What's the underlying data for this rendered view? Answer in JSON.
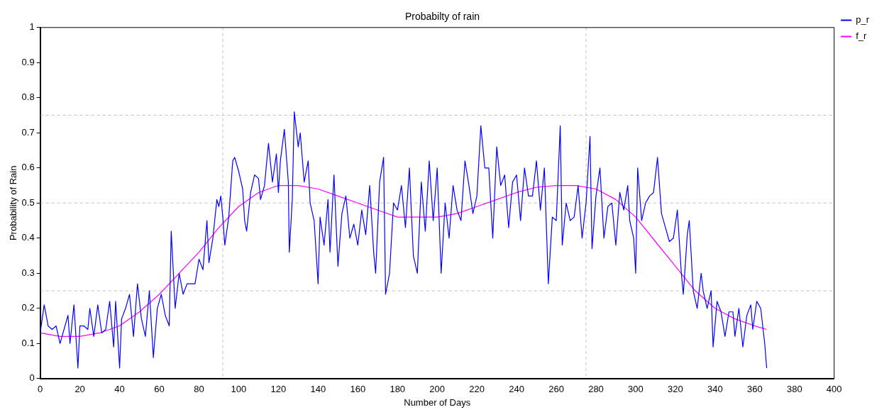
{
  "chart_data": {
    "type": "line",
    "title": "Probabilty of rain",
    "xlabel": "Number of Days",
    "ylabel": "Probability of Rain",
    "xlim": [
      0,
      400
    ],
    "xticks": [
      0,
      20,
      40,
      60,
      80,
      100,
      120,
      140,
      160,
      180,
      200,
      220,
      240,
      260,
      280,
      300,
      320,
      340,
      360,
      380,
      400
    ],
    "ylim": [
      0,
      1
    ],
    "yticks": [
      0,
      0.1,
      0.2,
      0.3,
      0.4,
      0.5,
      0.6,
      0.7,
      0.8,
      0.9,
      1
    ],
    "legend": "top right",
    "marker": "none",
    "line_style": "solid",
    "ref_lines": [
      {
        "axis": "x",
        "value": 92,
        "color": "#c0c0c0",
        "line_style": "dashed"
      },
      {
        "axis": "x",
        "value": 275,
        "color": "#c0c0c0",
        "line_style": "dashed"
      },
      {
        "axis": "y",
        "value": 0.25,
        "color": "#c0c0c0",
        "line_style": "dashed"
      },
      {
        "axis": "y",
        "value": 0.5,
        "color": "#c0c0c0",
        "line_style": "dashed"
      },
      {
        "axis": "y",
        "value": 0.75,
        "color": "#c0c0c0",
        "line_style": "dashed"
      }
    ],
    "series": [
      {
        "name": "p_r",
        "color": "#0000ff",
        "x": [
          0,
          2,
          4,
          6,
          8,
          10,
          12,
          14,
          15,
          17,
          19,
          20,
          22,
          24,
          25,
          27,
          29,
          31,
          33,
          35,
          37,
          38,
          40,
          41,
          43,
          45,
          47,
          49,
          51,
          53,
          55,
          57,
          59,
          61,
          63,
          65,
          66,
          68,
          70,
          72,
          74,
          78,
          80,
          82,
          84,
          85,
          87,
          89,
          90,
          91,
          92,
          93,
          95,
          97,
          98,
          100,
          102,
          103,
          104,
          106,
          108,
          110,
          111,
          113,
          115,
          117,
          119,
          120,
          121,
          123,
          125,
          125.5,
          127,
          128,
          130,
          131,
          133,
          135,
          136,
          138,
          140,
          141,
          143,
          145,
          146,
          148,
          150,
          152,
          154,
          156,
          158,
          160,
          162,
          164,
          166,
          168,
          169,
          171,
          173,
          174,
          176,
          178,
          180,
          182,
          184,
          186,
          188,
          190,
          192,
          194,
          196,
          198,
          200,
          202,
          204,
          206,
          208,
          210,
          212,
          214,
          216,
          218,
          220,
          222,
          224,
          226,
          228,
          230,
          232,
          234,
          236,
          238,
          240,
          242,
          244,
          246,
          248,
          250,
          252,
          254,
          256,
          258,
          260,
          262,
          263,
          265,
          267,
          269,
          271,
          273,
          275,
          277,
          278,
          280,
          282,
          284,
          286,
          288,
          290,
          292,
          294,
          296,
          297,
          299,
          300,
          301,
          303,
          305,
          307,
          309,
          311,
          313,
          315,
          317,
          319,
          321,
          323,
          324,
          326,
          327,
          329,
          331,
          333,
          334,
          336,
          338,
          339,
          341,
          343,
          345,
          347,
          349,
          350,
          352,
          354,
          356,
          358,
          359,
          361,
          363,
          365,
          366
        ],
        "values": [
          0.13,
          0.21,
          0.15,
          0.14,
          0.15,
          0.1,
          0.14,
          0.18,
          0.1,
          0.21,
          0.03,
          0.15,
          0.15,
          0.14,
          0.2,
          0.12,
          0.21,
          0.13,
          0.14,
          0.22,
          0.09,
          0.22,
          0.03,
          0.17,
          0.2,
          0.24,
          0.12,
          0.27,
          0.17,
          0.12,
          0.25,
          0.06,
          0.2,
          0.24,
          0.18,
          0.15,
          0.42,
          0.2,
          0.3,
          0.24,
          0.27,
          0.27,
          0.34,
          0.31,
          0.45,
          0.33,
          0.4,
          0.51,
          0.49,
          0.52,
          0.46,
          0.38,
          0.46,
          0.62,
          0.63,
          0.59,
          0.54,
          0.45,
          0.42,
          0.53,
          0.58,
          0.57,
          0.51,
          0.55,
          0.67,
          0.56,
          0.64,
          0.53,
          0.62,
          0.71,
          0.56,
          0.36,
          0.51,
          0.76,
          0.66,
          0.7,
          0.56,
          0.62,
          0.5,
          0.45,
          0.27,
          0.46,
          0.38,
          0.51,
          0.36,
          0.58,
          0.32,
          0.47,
          0.52,
          0.4,
          0.44,
          0.38,
          0.48,
          0.41,
          0.55,
          0.36,
          0.3,
          0.56,
          0.63,
          0.24,
          0.3,
          0.5,
          0.48,
          0.55,
          0.43,
          0.6,
          0.35,
          0.3,
          0.56,
          0.42,
          0.62,
          0.45,
          0.6,
          0.3,
          0.5,
          0.4,
          0.55,
          0.48,
          0.45,
          0.62,
          0.55,
          0.47,
          0.52,
          0.72,
          0.6,
          0.6,
          0.4,
          0.66,
          0.55,
          0.58,
          0.43,
          0.56,
          0.58,
          0.45,
          0.6,
          0.52,
          0.52,
          0.62,
          0.48,
          0.6,
          0.27,
          0.46,
          0.45,
          0.72,
          0.38,
          0.5,
          0.45,
          0.46,
          0.55,
          0.4,
          0.5,
          0.69,
          0.37,
          0.52,
          0.6,
          0.4,
          0.49,
          0.5,
          0.38,
          0.53,
          0.48,
          0.55,
          0.45,
          0.4,
          0.3,
          0.6,
          0.45,
          0.5,
          0.52,
          0.53,
          0.63,
          0.47,
          0.43,
          0.39,
          0.4,
          0.48,
          0.3,
          0.24,
          0.41,
          0.45,
          0.25,
          0.2,
          0.3,
          0.25,
          0.2,
          0.25,
          0.09,
          0.22,
          0.19,
          0.12,
          0.19,
          0.19,
          0.12,
          0.2,
          0.09,
          0.18,
          0.21,
          0.14,
          0.22,
          0.2,
          0.1,
          0.03
        ]
      },
      {
        "name": "f_r",
        "color": "#ff00ff",
        "x": [
          0,
          10,
          20,
          30,
          40,
          50,
          60,
          70,
          80,
          90,
          100,
          110,
          120,
          130,
          140,
          150,
          160,
          170,
          180,
          190,
          200,
          210,
          220,
          230,
          240,
          250,
          260,
          270,
          280,
          290,
          300,
          310,
          320,
          330,
          340,
          350,
          360,
          366
        ],
        "values": [
          0.13,
          0.12,
          0.12,
          0.13,
          0.15,
          0.19,
          0.24,
          0.3,
          0.36,
          0.43,
          0.49,
          0.53,
          0.55,
          0.55,
          0.54,
          0.52,
          0.5,
          0.48,
          0.46,
          0.46,
          0.46,
          0.47,
          0.49,
          0.51,
          0.53,
          0.545,
          0.55,
          0.55,
          0.54,
          0.51,
          0.46,
          0.39,
          0.32,
          0.25,
          0.2,
          0.17,
          0.15,
          0.14
        ]
      }
    ]
  }
}
